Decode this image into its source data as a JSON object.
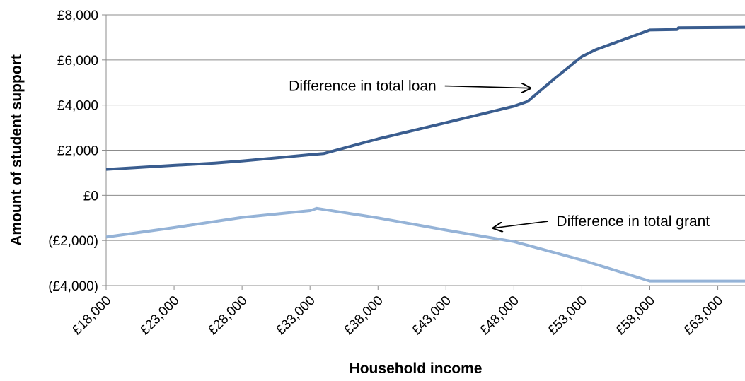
{
  "chart_data": {
    "type": "line",
    "xlabel": "Household income",
    "ylabel": "Amount of student support",
    "xlim": [
      18000,
      65000
    ],
    "ylim": [
      -4000,
      8000
    ],
    "x_ticks": [
      18000,
      23000,
      28000,
      33000,
      38000,
      43000,
      48000,
      53000,
      58000,
      63000
    ],
    "x_tick_labels": [
      "£18,000",
      "£23,000",
      "£28,000",
      "£33,000",
      "£38,000",
      "£43,000",
      "£48,000",
      "£53,000",
      "£58,000",
      "£63,000"
    ],
    "y_ticks": [
      8000,
      6000,
      4000,
      2000,
      0,
      -2000,
      -4000
    ],
    "y_tick_labels": [
      "£8,000",
      "£6,000",
      "£4,000",
      "£2,000",
      "£0",
      "(£2,000)",
      "(£4,000)"
    ],
    "grid": "horizontal",
    "series": [
      {
        "name": "Difference in total loan",
        "color": "#3a5d8f",
        "x": [
          18000,
          20000,
          23000,
          26000,
          28000,
          30000,
          33000,
          34000,
          38000,
          43000,
          48000,
          49000,
          51000,
          53000,
          54000,
          58000,
          60000,
          60100,
          65000
        ],
        "y": [
          1150,
          1220,
          1330,
          1430,
          1520,
          1630,
          1800,
          1850,
          2500,
          3220,
          3950,
          4160,
          5180,
          6150,
          6450,
          7330,
          7350,
          7430,
          7450
        ]
      },
      {
        "name": "Difference in total grant",
        "color": "#95b3d7",
        "x": [
          18000,
          23000,
          28000,
          33000,
          33500,
          38000,
          43000,
          48000,
          53000,
          58000,
          60000,
          65000
        ],
        "y": [
          -1850,
          -1430,
          -980,
          -680,
          -580,
          -1000,
          -1540,
          -2050,
          -2870,
          -3800,
          -3800,
          -3800
        ]
      }
    ],
    "annotations": [
      {
        "text": "Difference in total loan",
        "x": 45000,
        "y": 4850,
        "arrow_to_x": 49200,
        "arrow_to_y": 4750
      },
      {
        "text": "Difference in total grant",
        "x": 50500,
        "y": -1150,
        "arrow_to_x": 46500,
        "arrow_to_y": -1450
      }
    ]
  }
}
